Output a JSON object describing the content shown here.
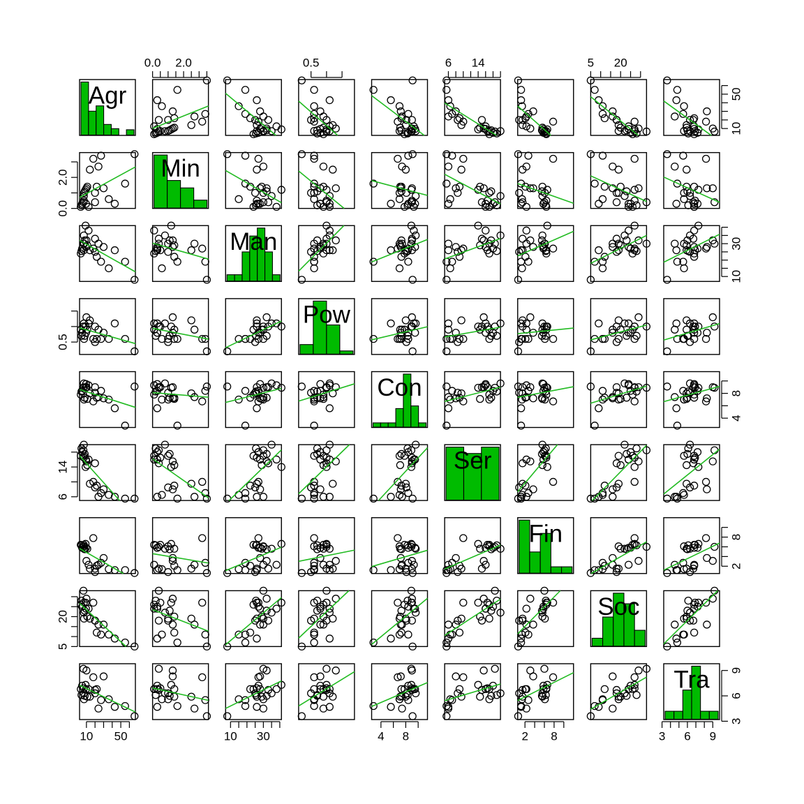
{
  "chart_data": {
    "type": "scatter-matrix",
    "variables": [
      "Agr",
      "Min",
      "Man",
      "Pow",
      "Con",
      "Ser",
      "Fin",
      "Soc",
      "Tra"
    ],
    "ranges": {
      "Agr": [
        2,
        67
      ],
      "Min": [
        0,
        3.6
      ],
      "Man": [
        7,
        41
      ],
      "Pow": [
        0.1,
        1.9
      ],
      "Con": [
        2.5,
        11.5
      ],
      "Ser": [
        5,
        20
      ],
      "Fin": [
        0.5,
        12
      ],
      "Soc": [
        5,
        33
      ],
      "Tra": [
        3.2,
        9.8
      ]
    },
    "axes": {
      "top": {
        "Min": {
          "ticks": [
            0,
            0.5,
            1,
            1.5,
            2,
            2.5,
            3,
            3.5
          ],
          "labels": [
            {
              "v": 0.0,
              "t": "0.0"
            },
            {
              "v": 2.0,
              "t": "2.0"
            }
          ]
        },
        "Pow": {
          "ticks": [
            0.5,
            1,
            1.5
          ],
          "labels": [
            {
              "v": 0.5,
              "t": "0.5"
            }
          ]
        },
        "Ser": {
          "ticks": [
            6,
            8,
            10,
            12,
            14,
            16,
            18,
            20
          ],
          "labels": [
            {
              "v": 6,
              "t": "6"
            },
            {
              "v": 14,
              "t": "14"
            }
          ]
        },
        "Soc": {
          "ticks": [
            5,
            10,
            15,
            20,
            25,
            30
          ],
          "labels": [
            {
              "v": 5,
              "t": "5"
            },
            {
              "v": 20,
              "t": "20"
            }
          ]
        }
      },
      "right": {
        "Agr": {
          "ticks": [
            10,
            20,
            30,
            40,
            50,
            60
          ],
          "labels": [
            {
              "v": 10,
              "t": "10"
            },
            {
              "v": 50,
              "t": "50"
            }
          ]
        },
        "Man": {
          "ticks": [
            10,
            15,
            20,
            25,
            30,
            35,
            40
          ],
          "labels": [
            {
              "v": 10,
              "t": "10"
            },
            {
              "v": 30,
              "t": "30"
            }
          ]
        },
        "Con": {
          "ticks": [
            4,
            6,
            8,
            10
          ],
          "labels": [
            {
              "v": 4,
              "t": "4"
            },
            {
              "v": 8,
              "t": "8"
            }
          ]
        },
        "Fin": {
          "ticks": [
            2,
            4,
            6,
            8,
            10
          ],
          "labels": [
            {
              "v": 2,
              "t": "2"
            },
            {
              "v": 8,
              "t": "8"
            }
          ]
        },
        "Tra": {
          "ticks": [
            3,
            6,
            9
          ],
          "labels": [
            {
              "v": 3,
              "t": "3"
            },
            {
              "v": 6,
              "t": "6"
            },
            {
              "v": 9,
              "t": "9"
            }
          ]
        }
      },
      "left": {
        "Min": {
          "ticks": [
            0,
            1,
            2,
            3
          ],
          "labels": [
            {
              "v": 0.0,
              "t": "0.0"
            },
            {
              "v": 2.0,
              "t": "2.0"
            }
          ]
        },
        "Pow": {
          "ticks": [
            0.5,
            1,
            1.5
          ],
          "labels": [
            {
              "v": 0.5,
              "t": "0.5"
            }
          ]
        },
        "Ser": {
          "ticks": [
            6,
            10,
            14,
            18
          ],
          "labels": [
            {
              "v": 6,
              "t": "6"
            },
            {
              "v": 14,
              "t": "14"
            }
          ]
        },
        "Soc": {
          "ticks": [
            5,
            10,
            15,
            20,
            25,
            30
          ],
          "labels": [
            {
              "v": 5,
              "t": "5"
            },
            {
              "v": 20,
              "t": "20"
            }
          ]
        }
      },
      "bottom": {
        "Agr": {
          "ticks": [
            10,
            20,
            30,
            40,
            50,
            60
          ],
          "labels": [
            {
              "v": 10,
              "t": "10"
            },
            {
              "v": 50,
              "t": "50"
            }
          ]
        },
        "Man": {
          "ticks": [
            10,
            15,
            20,
            25,
            30,
            35,
            40
          ],
          "labels": [
            {
              "v": 10,
              "t": "10"
            },
            {
              "v": 30,
              "t": "30"
            }
          ]
        },
        "Con": {
          "ticks": [
            4,
            6,
            8,
            10
          ],
          "labels": [
            {
              "v": 4,
              "t": "4"
            },
            {
              "v": 8,
              "t": "8"
            }
          ]
        },
        "Fin": {
          "ticks": [
            2,
            4,
            6,
            8,
            10
          ],
          "labels": [
            {
              "v": 2,
              "t": "2"
            },
            {
              "v": 8,
              "t": "8"
            }
          ]
        },
        "Tra": {
          "ticks": [
            3,
            4,
            5,
            6,
            7,
            8,
            9
          ],
          "labels": [
            {
              "v": 3,
              "t": "3"
            },
            {
              "v": 6,
              "t": "6"
            },
            {
              "v": 9,
              "t": "9"
            }
          ]
        }
      }
    },
    "histograms": {
      "Agr": [
        1.0,
        0.45,
        0.55,
        0.2,
        0.12,
        0.0,
        0.1
      ],
      "Min": [
        1.0,
        0.52,
        0.38,
        0.15
      ],
      "Man": [
        0.12,
        0.12,
        0.55,
        0.85,
        1.0,
        0.55,
        0.12
      ],
      "Pow": [
        0.18,
        1.0,
        0.55,
        0.06
      ],
      "Con": [
        0.08,
        0.08,
        0.08,
        0.35,
        1.0,
        0.4,
        0.08
      ],
      "Ser": [
        1.0,
        0.88,
        1.0
      ],
      "Fin": [
        1.0,
        0.4,
        0.75,
        0.12,
        0.12
      ],
      "Soc": [
        0.15,
        0.55,
        1.0,
        0.8,
        0.3
      ],
      "Tra": [
        0.15,
        0.15,
        0.55,
        1.0,
        0.15,
        0.15
      ]
    },
    "observations": {
      "Agr": [
        3.4,
        4.2,
        5.0,
        6.5,
        7.0,
        7.0,
        7.2,
        8.0,
        9.0,
        9.5,
        10.0,
        11.0,
        12.5,
        14.0,
        18.0,
        20.0,
        20.0,
        22.0,
        24.0,
        27.0,
        30.0,
        36.0,
        43.0,
        55.0,
        66.0
      ],
      "Min": [
        0.1,
        0.2,
        0.3,
        0.4,
        0.5,
        0.8,
        1.0,
        1.1,
        1.2,
        0.3,
        1.3,
        1.4,
        0.1,
        2.5,
        3.2,
        0.4,
        1.0,
        1.4,
        2.7,
        3.4,
        1.3,
        0.6,
        0.3,
        1.6,
        3.5
      ],
      "Man": [
        24.0,
        25.5,
        27.0,
        30.0,
        26.0,
        35.0,
        30.0,
        32.0,
        41.0,
        28.0,
        32.0,
        29.0,
        38.0,
        26.0,
        27.0,
        33.0,
        25.0,
        22.0,
        30.0,
        19.0,
        28.0,
        15.0,
        26.0,
        19.0,
        8.0
      ],
      "Pow": [
        0.9,
        0.7,
        0.8,
        1.0,
        1.0,
        1.1,
        0.6,
        0.7,
        1.0,
        0.8,
        1.3,
        0.9,
        1.1,
        1.2,
        0.6,
        1.0,
        0.5,
        0.6,
        0.9,
        0.6,
        0.8,
        0.6,
        1.1,
        0.6,
        0.2
      ],
      "Con": [
        7.8,
        8.3,
        8.4,
        8.9,
        9.0,
        9.6,
        7.0,
        7.3,
        8.9,
        9.5,
        9.0,
        7.1,
        9.3,
        8.0,
        6.7,
        9.0,
        8.1,
        7.3,
        7.4,
        8.4,
        7.2,
        7.0,
        5.6,
        2.8,
        9.1
      ],
      "Ser": [
        17.0,
        19.0,
        18.0,
        18.5,
        16.5,
        20.0,
        17.0,
        17.5,
        14.0,
        16.0,
        15.5,
        14.5,
        16.0,
        9.5,
        10.0,
        15.0,
        8.5,
        9.0,
        6.0,
        7.0,
        8.0,
        6.5,
        6.0,
        5.5,
        5.5
      ],
      "Fin": [
        6.4,
        6.3,
        5.8,
        6.0,
        6.4,
        5.6,
        6.1,
        5.5,
        6.6,
        5.8,
        3.1,
        5.6,
        2.3,
        1.5,
        7.8,
        1.5,
        0.8,
        2.1,
        2.3,
        2.7,
        3.7,
        1.4,
        1.2,
        1.2,
        0.6
      ],
      "Soc": [
        26.0,
        28.0,
        25.0,
        33.0,
        27.0,
        22.0,
        19.0,
        23.0,
        27.0,
        24.0,
        29.0,
        20.0,
        24.0,
        19.0,
        27.0,
        18.0,
        18.0,
        12.0,
        16.0,
        11.0,
        16.0,
        11.0,
        9.0,
        7.0,
        5.0
      ],
      "Tra": [
        6.8,
        6.1,
        7.2,
        9.2,
        6.9,
        6.3,
        5.6,
        6.0,
        7.3,
        6.8,
        9.0,
        5.9,
        6.8,
        5.9,
        8.2,
        6.7,
        6.3,
        6.8,
        4.5,
        5.5,
        8.3,
        5.6,
        4.7,
        4.8,
        3.6
      ]
    }
  }
}
